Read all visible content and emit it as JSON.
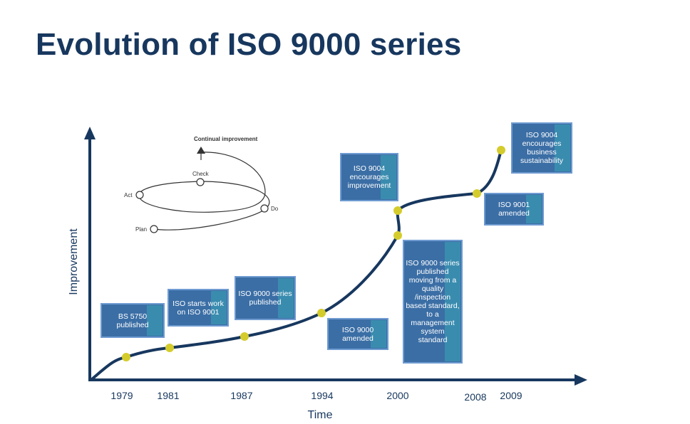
{
  "title": "Evolution of ISO 9000 series",
  "colors": {
    "title": "#17375e",
    "axis": "#17375e",
    "curve": "#17375e",
    "point": "#d4cc2c",
    "box_fill": "#3b6ea5",
    "box_border": "#6f9bd1",
    "box_accent": "#3aa5b8"
  },
  "axes": {
    "x_label": "Time",
    "y_label": "Improvement"
  },
  "timeline": {
    "years": [
      "1979",
      "1981",
      "1987",
      "1994",
      "2000",
      "2008",
      "2009"
    ]
  },
  "events": [
    {
      "text": "BS 5750 published"
    },
    {
      "text": "ISO starts work on ISO 9001"
    },
    {
      "text": "ISO 9000 series published"
    },
    {
      "text": "ISO 9000 amended"
    },
    {
      "text": "ISO 9004 encourages improvement"
    },
    {
      "text": "ISO 9000 series published moving from a quality /inspection based standard, to a management system standard"
    },
    {
      "text": "ISO 9001 amended"
    },
    {
      "text": "ISO 9004 encourages business sustainability"
    }
  ],
  "cycle": {
    "top_label": "Continual improvement",
    "act": "Act",
    "check": "Check",
    "do": "Do",
    "plan": "Plan"
  }
}
